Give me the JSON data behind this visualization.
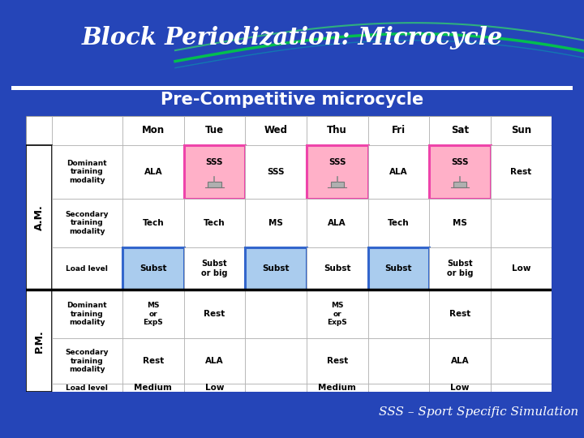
{
  "title": "Block Periodization: Microcycle",
  "subtitle": "Pre-Competitive microcycle",
  "footer": "SSS – Sport Specific Simulation",
  "bg_color": "#2a4bbf",
  "days": [
    "Mon",
    "Tue",
    "Wed",
    "Thu",
    "Fri",
    "Sat",
    "Sun"
  ],
  "am_label": "A.M.",
  "pm_label": "P.M.",
  "am_row_labels": [
    "Dominant\ntraining\nmodality",
    "Secondary\ntraining\nmodality",
    "Load level"
  ],
  "pm_row_labels": [
    "Dominant\ntraining\nmodality",
    "Secondary\ntraining\nmodality",
    "Load level"
  ],
  "am_cells": [
    [
      "ALA",
      "SSS",
      "SSS",
      "SSS",
      "ALA",
      "SSS",
      "Rest"
    ],
    [
      "Tech",
      "Tech",
      "MS",
      "ALA",
      "Tech",
      "MS",
      ""
    ],
    [
      "Subst",
      "Subst\nor big",
      "Subst",
      "Subst",
      "Subst",
      "Subst\nor big",
      "Low"
    ]
  ],
  "pm_cells": [
    [
      "MS\nor\nExpS",
      "Rest",
      "",
      "MS\nor\nExpS",
      "",
      "Rest",
      ""
    ],
    [
      "Rest",
      "ALA",
      "",
      "Rest",
      "",
      "ALA",
      ""
    ],
    [
      "Medium",
      "Low",
      "",
      "Medium",
      "",
      "Low",
      ""
    ]
  ],
  "sss_icon_am_cols": [
    1,
    3,
    5
  ],
  "pink_am_cols": [
    1,
    3,
    5
  ],
  "blue_am_load_cols": [
    0,
    2,
    4
  ]
}
